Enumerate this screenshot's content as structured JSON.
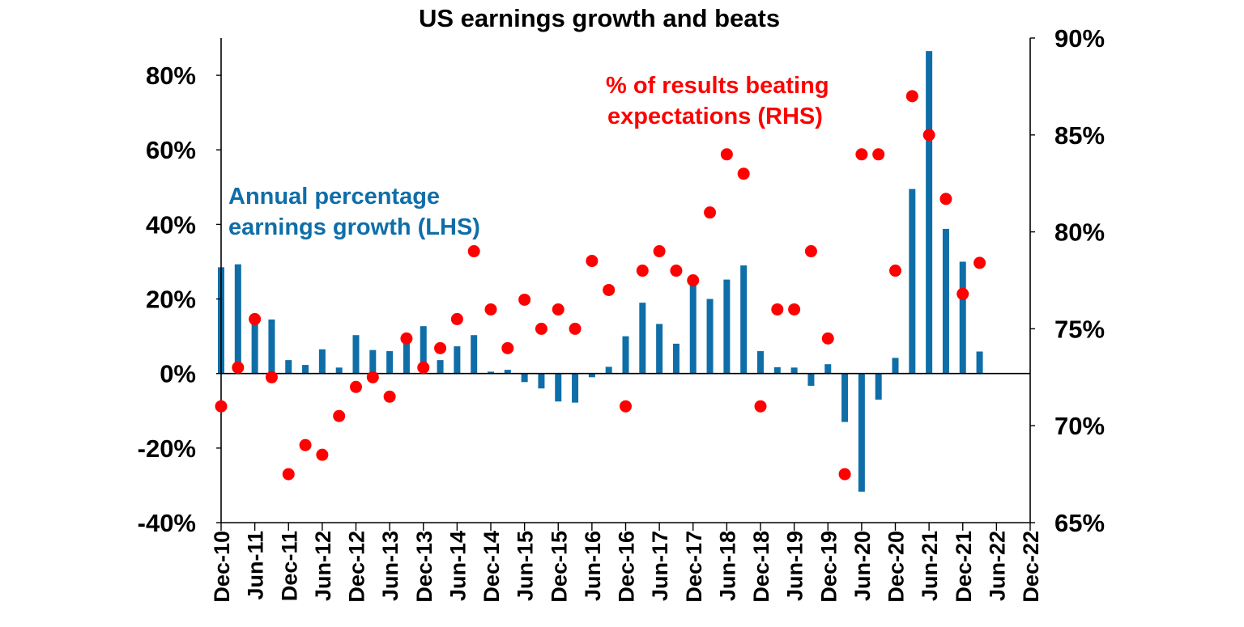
{
  "chart_data": {
    "type": "bar+scatter",
    "title": "US earnings growth and beats",
    "colors": {
      "bars": "#0F6EA8",
      "dots": "#FF0000",
      "axis": "#000000"
    },
    "left_axis": {
      "range": [
        -40,
        90
      ],
      "ticks": [
        -40,
        -20,
        0,
        20,
        40,
        60,
        80
      ],
      "tick_labels": [
        "-40%",
        "-20%",
        "0%",
        "20%",
        "40%",
        "60%",
        "80%"
      ]
    },
    "right_axis": {
      "range": [
        65,
        90
      ],
      "ticks": [
        65,
        70,
        75,
        80,
        85,
        90
      ],
      "tick_labels": [
        "65%",
        "70%",
        "75%",
        "80%",
        "85%",
        "90%"
      ]
    },
    "x_axis": {
      "start_index": 0,
      "end_index": 24,
      "tick_labels": [
        "Dec-10",
        "Jun-11",
        "Dec-11",
        "Jun-12",
        "Dec-12",
        "Jun-13",
        "Dec-13",
        "Jun-14",
        "Dec-14",
        "Jun-15",
        "Dec-15",
        "Jun-16",
        "Dec-16",
        "Jun-17",
        "Dec-17",
        "Jun-18",
        "Dec-18",
        "Jun-19",
        "Dec-19",
        "Jun-20",
        "Dec-20",
        "Jun-21",
        "Dec-21",
        "Jun-22",
        "Dec-22"
      ]
    },
    "series": [
      {
        "name": "Annual percentage earnings growth (LHS)",
        "type": "bar",
        "axis": "left",
        "x": [
          0,
          0.5,
          1,
          1.5,
          2,
          2.5,
          3,
          3.5,
          4,
          4.5,
          5,
          5.5,
          6,
          6.5,
          7,
          7.5,
          8,
          8.5,
          9,
          9.5,
          10,
          10.5,
          11,
          11.5,
          12,
          12.5,
          13,
          13.5,
          14,
          14.5,
          15,
          15.5,
          16,
          16.5,
          17,
          17.5,
          18,
          18.5,
          19,
          19.5,
          20,
          20.5,
          21,
          21.5,
          22,
          22.5
        ],
        "values": [
          28.5,
          29.3,
          15.5,
          14.5,
          3.6,
          2.3,
          6.5,
          1.6,
          10.3,
          6.3,
          6.0,
          8.4,
          12.7,
          3.6,
          7.3,
          10.3,
          0.5,
          1.0,
          -2.3,
          -4.0,
          -7.5,
          -7.8,
          -1.0,
          1.8,
          10.0,
          19.0,
          13.3,
          8.0,
          24.5,
          20.0,
          25.2,
          29.0,
          6.0,
          1.7,
          1.6,
          -3.3,
          2.5,
          -13.0,
          -31.7,
          -7.0,
          4.2,
          49.5,
          86.5,
          38.8,
          30.0,
          5.9
        ]
      },
      {
        "name": "% of results beating expectations (RHS)",
        "type": "scatter",
        "axis": "right",
        "x": [
          0,
          0.5,
          1,
          1.5,
          2,
          2.5,
          3,
          3.5,
          4,
          4.5,
          5,
          5.5,
          6,
          6.5,
          7,
          7.5,
          8,
          8.5,
          9,
          9.5,
          10,
          10.5,
          11,
          11.5,
          12,
          12.5,
          13,
          13.5,
          14,
          14.5,
          15,
          15.5,
          16,
          16.5,
          17,
          17.5,
          18,
          18.5,
          19,
          19.5,
          20,
          20.5,
          21,
          21.5,
          22,
          22.5
        ],
        "values": [
          71.0,
          73.0,
          75.5,
          72.5,
          67.5,
          69.0,
          68.5,
          70.5,
          72.0,
          72.5,
          71.5,
          74.5,
          73.0,
          74.0,
          75.5,
          79.0,
          76.0,
          74.0,
          76.5,
          75.0,
          76.0,
          75.0,
          78.5,
          77.0,
          71.0,
          78.0,
          79.0,
          78.0,
          77.5,
          81.0,
          84.0,
          83.0,
          71.0,
          76.0,
          76.0,
          79.0,
          74.5,
          67.5,
          84.0,
          84.0,
          78.0,
          87.0,
          85.0,
          81.7,
          76.8,
          78.4
        ]
      }
    ],
    "annotations": {
      "bars_label_line1": "Annual percentage",
      "bars_label_line2": "earnings growth (LHS)",
      "dots_label_line1": "% of results beating",
      "dots_label_line2": "expectations (RHS)"
    }
  }
}
